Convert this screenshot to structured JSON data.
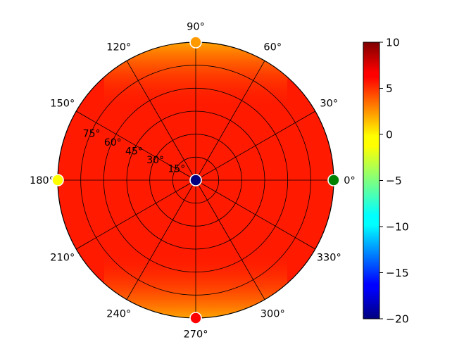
{
  "chart_data": {
    "type": "heatmap",
    "projection": "polar",
    "title": "",
    "angular_ticks": [
      "0°",
      "30°",
      "60°",
      "90°",
      "120°",
      "150°",
      "180°",
      "210°",
      "240°",
      "270°",
      "300°",
      "330°"
    ],
    "radial_ticks": [
      "15°",
      "30°",
      "45°",
      "60°",
      "75°"
    ],
    "radial_tick_values": [
      15,
      30,
      45,
      60,
      75
    ],
    "rlim": [
      0,
      90
    ],
    "grid": true,
    "field": {
      "description_values": "color value by direction: ~8 over most of disk, ~4.5 near 90° and 270° rim",
      "base_value": 8,
      "rim_minimum_value": 4.5,
      "rim_minimum_angles_deg": [
        90,
        270
      ]
    },
    "markers": [
      {
        "label": "center",
        "angle": 0,
        "radius": 0,
        "value": -19,
        "color": "#000080",
        "edge": "#ffffff"
      },
      {
        "label": "0°",
        "angle": 0,
        "radius": 90,
        "value": -7,
        "color": "#008000",
        "edge": "#ffffff"
      },
      {
        "label": "90°",
        "angle": 90,
        "radius": 90,
        "value": 4,
        "color": "#ff9900",
        "edge": "#ffffff"
      },
      {
        "label": "180°",
        "angle": 180,
        "radius": 90,
        "value": 0.5,
        "color": "#ffff00",
        "edge": "#ffffff"
      },
      {
        "label": "270°",
        "angle": 270,
        "radius": 90,
        "value": 8,
        "color": "#ff0000",
        "edge": "#ffffff"
      }
    ],
    "colorbar": {
      "colormap": "jet",
      "vmin": -20,
      "vmax": 10,
      "ticks": [
        10,
        5,
        0,
        -5,
        -10,
        -15,
        -20
      ],
      "tick_labels": [
        "10",
        "5",
        "0",
        "−5",
        "−10",
        "−15",
        "−20"
      ],
      "label": ""
    },
    "colors": {
      "field_base": "#ff1a00",
      "field_rim": "#ffa300",
      "grid": "#000000"
    }
  }
}
